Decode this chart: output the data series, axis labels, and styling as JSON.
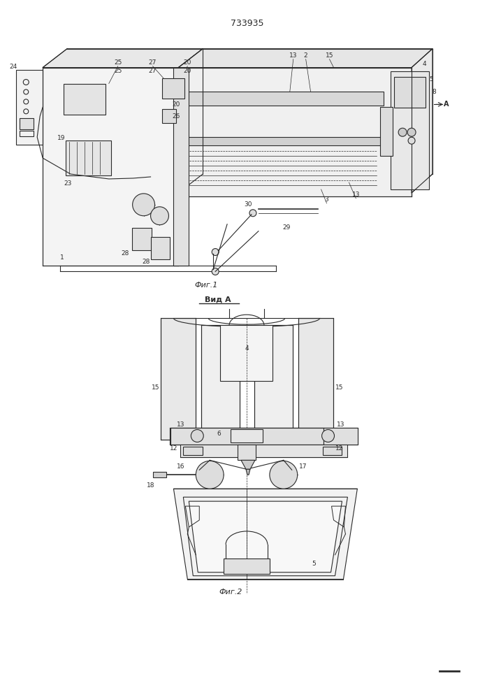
{
  "title": "733935",
  "fig1_caption": "Фиг.1",
  "fig2_caption": "Фиг.2",
  "view_label": "Вид A",
  "bg_color": "#ffffff",
  "lc": "#2a2a2a",
  "lw": 0.8,
  "fig_width": 7.07,
  "fig_height": 10.0
}
